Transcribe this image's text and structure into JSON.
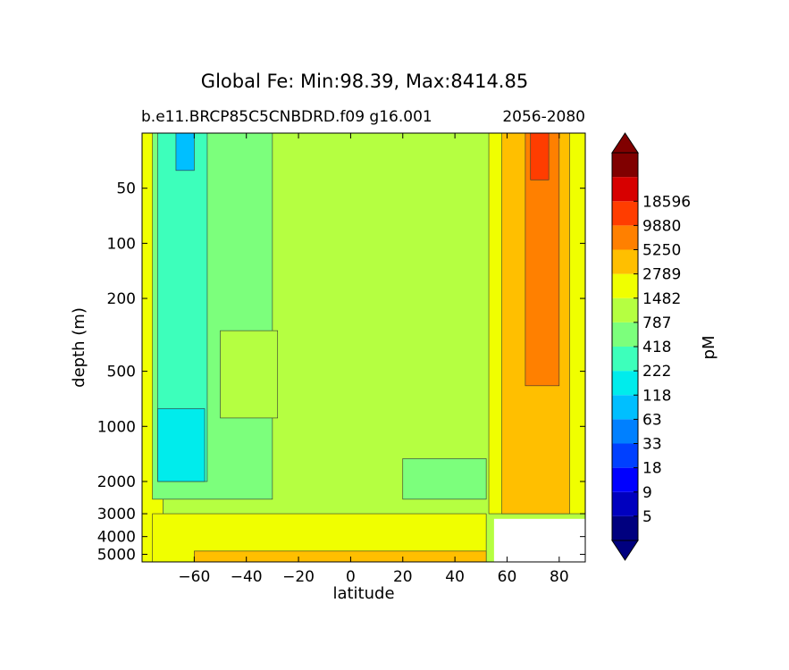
{
  "chart_data": {
    "type": "heatmap",
    "title": "Global Fe: Min:98.39, Max:8414.85",
    "subtitle_left": "b.e11.BRCP85C5CNBDRD.f09 g16.001",
    "subtitle_right": "2056-2080",
    "xlabel": "latitude",
    "ylabel": "depth (m)",
    "xlim": [
      -80,
      90
    ],
    "ylim": [
      5500,
      25
    ],
    "y_scale": "log",
    "x_ticks": [
      -60,
      -40,
      -20,
      0,
      20,
      40,
      60,
      80
    ],
    "x_tick_labels": [
      "−60",
      "−40",
      "−20",
      "0",
      "20",
      "40",
      "60",
      "80"
    ],
    "y_ticks": [
      50,
      100,
      200,
      500,
      1000,
      2000,
      3000,
      4000,
      5000
    ],
    "y_tick_labels": [
      "50",
      "100",
      "200",
      "500",
      "1000",
      "2000",
      "3000",
      "4000",
      "5000"
    ],
    "colorbar": {
      "label": "pM",
      "extend": "both",
      "levels": [
        5,
        9,
        18,
        33,
        63,
        118,
        222,
        418,
        787,
        1482,
        2789,
        5250,
        9880,
        18596
      ],
      "level_labels": [
        "5",
        "9",
        "18",
        "33",
        "63",
        "118",
        "222",
        "418",
        "787",
        "1482",
        "2789",
        "5250",
        "9880",
        "18596"
      ],
      "colors": [
        "#00007f",
        "#0000bf",
        "#0000ff",
        "#0040ff",
        "#0080ff",
        "#00bfff",
        "#00ecec",
        "#3dffbb",
        "#7cff7c",
        "#b5ff41",
        "#f0ff00",
        "#ffbf00",
        "#ff8000",
        "#ff3d00",
        "#d70000",
        "#800000"
      ]
    },
    "regions": [
      {
        "x": [
          -80,
          90
        ],
        "y": [
          25,
          5500
        ],
        "class_index": 9
      },
      {
        "x": [
          -80,
          -72
        ],
        "y": [
          25,
          5500
        ],
        "class_index": 10
      },
      {
        "x": [
          -76,
          -30
        ],
        "y": [
          25,
          2500
        ],
        "class_index": 8
      },
      {
        "x": [
          -74,
          -55
        ],
        "y": [
          25,
          2000
        ],
        "class_index": 7
      },
      {
        "x": [
          -74,
          -56
        ],
        "y": [
          800,
          2000
        ],
        "class_index": 6
      },
      {
        "x": [
          -67,
          -60
        ],
        "y": [
          25,
          40
        ],
        "class_index": 5
      },
      {
        "x": [
          -50,
          -28
        ],
        "y": [
          300,
          900
        ],
        "class_index": 9
      },
      {
        "x": [
          20,
          52
        ],
        "y": [
          1500,
          2500
        ],
        "class_index": 8
      },
      {
        "x": [
          -76,
          52
        ],
        "y": [
          3000,
          5500
        ],
        "class_index": 10
      },
      {
        "x": [
          -60,
          52
        ],
        "y": [
          4800,
          5500
        ],
        "class_index": 11
      },
      {
        "x": [
          53,
          90
        ],
        "y": [
          25,
          3000
        ],
        "class_index": 10
      },
      {
        "x": [
          58,
          84
        ],
        "y": [
          25,
          3000
        ],
        "class_index": 11
      },
      {
        "x": [
          67,
          80
        ],
        "y": [
          25,
          600
        ],
        "class_index": 12
      },
      {
        "x": [
          69,
          76
        ],
        "y": [
          25,
          45
        ],
        "class_index": 13
      }
    ],
    "no_data": [
      {
        "x": [
          55,
          90
        ],
        "y": [
          3200,
          5500
        ]
      }
    ]
  }
}
